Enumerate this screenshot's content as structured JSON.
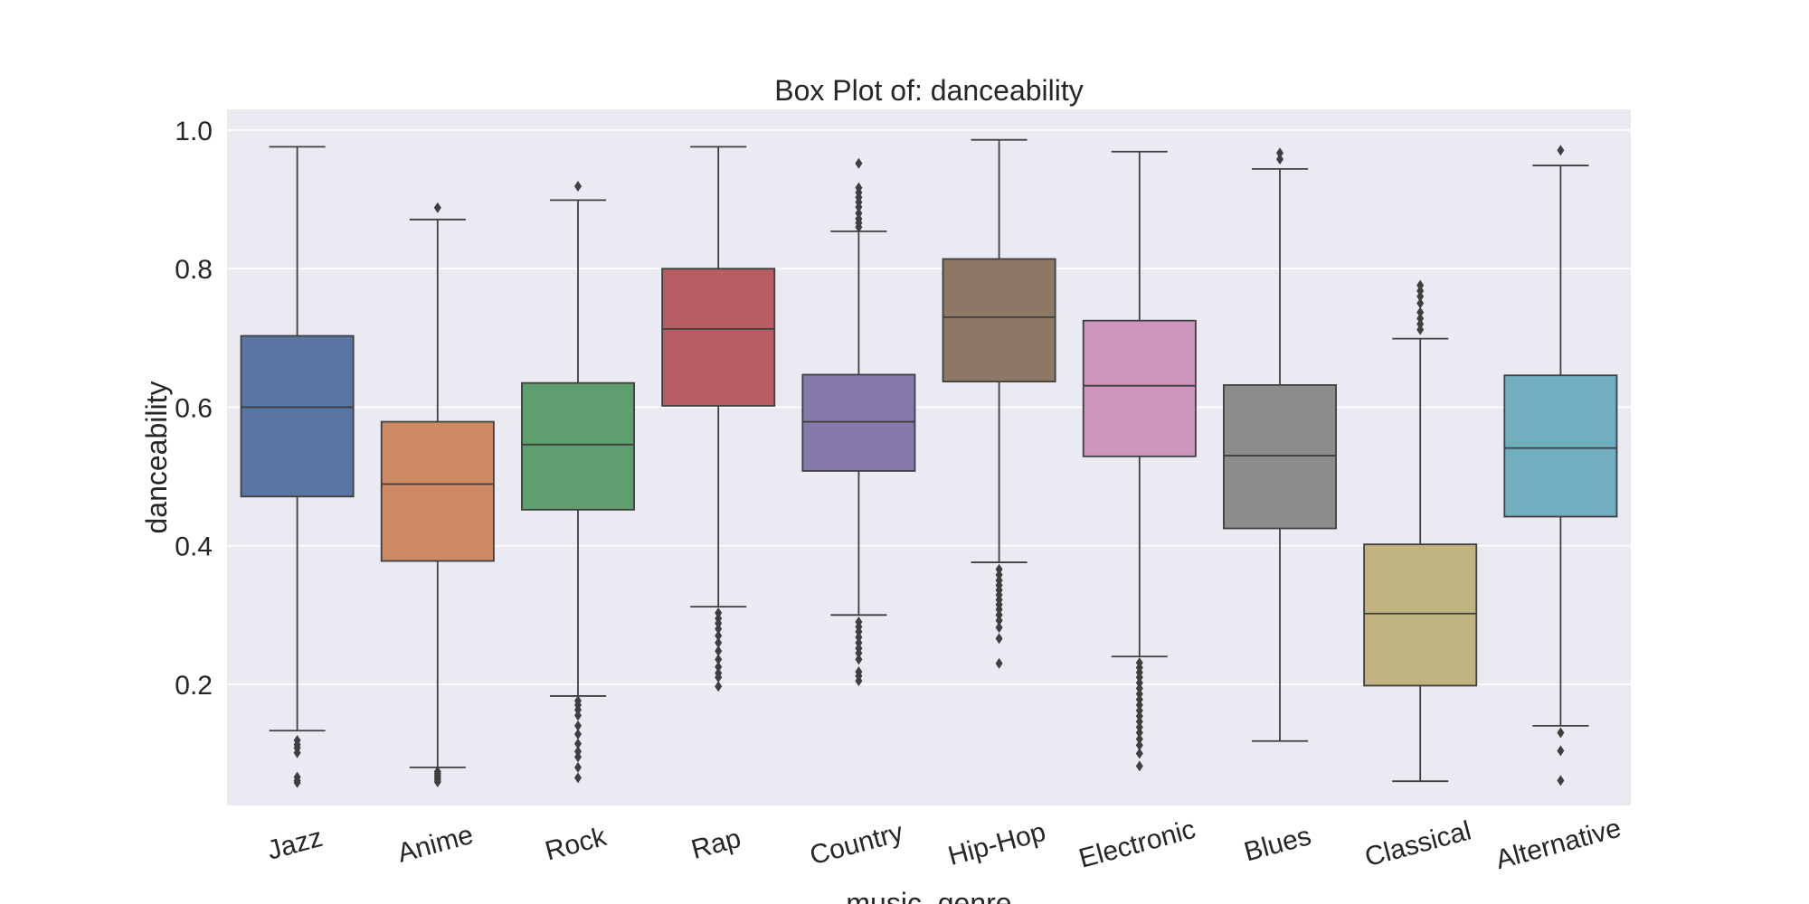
{
  "chart_data": {
    "type": "box",
    "title": "Box Plot of: danceability",
    "xlabel": "music_genre",
    "ylabel": "danceability",
    "ylim": [
      0.025,
      1.03
    ],
    "yticks": [
      0.2,
      0.4,
      0.6,
      0.8,
      1.0
    ],
    "ytick_labels": [
      "0.2",
      "0.4",
      "0.6",
      "0.8",
      "1.0"
    ],
    "grid": true,
    "background": "#EAEAF2",
    "categories": [
      "Jazz",
      "Anime",
      "Rock",
      "Rap",
      "Country",
      "Hip-Hop",
      "Electronic",
      "Blues",
      "Classical",
      "Alternative"
    ],
    "boxes": [
      {
        "name": "Jazz",
        "whisker_low": 0.133,
        "q1": 0.471,
        "median": 0.6,
        "q3": 0.703,
        "whisker_high": 0.976,
        "outliers": [
          0.119,
          0.113,
          0.108,
          0.101,
          0.066,
          0.061,
          0.058
        ],
        "color": "#5975A4"
      },
      {
        "name": "Anime",
        "whisker_low": 0.08,
        "q1": 0.378,
        "median": 0.489,
        "q3": 0.579,
        "whisker_high": 0.871,
        "outliers": [
          0.888,
          0.074,
          0.071,
          0.068,
          0.065,
          0.062,
          0.059
        ],
        "color": "#CC8963"
      },
      {
        "name": "Rock",
        "whisker_low": 0.183,
        "q1": 0.452,
        "median": 0.546,
        "q3": 0.635,
        "whisker_high": 0.899,
        "outliers": [
          0.919,
          0.176,
          0.17,
          0.163,
          0.155,
          0.14,
          0.128,
          0.114,
          0.103,
          0.095,
          0.08,
          0.065
        ],
        "color": "#5F9E6E"
      },
      {
        "name": "Rap",
        "whisker_low": 0.312,
        "q1": 0.602,
        "median": 0.713,
        "q3": 0.8,
        "whisker_high": 0.976,
        "outliers": [
          0.303,
          0.295,
          0.288,
          0.28,
          0.27,
          0.26,
          0.248,
          0.236,
          0.225,
          0.216,
          0.21,
          0.197
        ],
        "color": "#B55D60"
      },
      {
        "name": "Country",
        "whisker_low": 0.3,
        "q1": 0.508,
        "median": 0.579,
        "q3": 0.647,
        "whisker_high": 0.854,
        "outliers": [
          0.952,
          0.917,
          0.91,
          0.903,
          0.896,
          0.889,
          0.88,
          0.872,
          0.866,
          0.86,
          0.29,
          0.283,
          0.276,
          0.268,
          0.26,
          0.252,
          0.245,
          0.236,
          0.218,
          0.212,
          0.205
        ],
        "color": "#857AAB"
      },
      {
        "name": "Hip-Hop",
        "whisker_low": 0.376,
        "q1": 0.637,
        "median": 0.73,
        "q3": 0.814,
        "whisker_high": 0.986,
        "outliers": [
          0.366,
          0.358,
          0.35,
          0.343,
          0.336,
          0.329,
          0.322,
          0.315,
          0.308,
          0.3,
          0.292,
          0.282,
          0.266,
          0.23
        ],
        "color": "#8D7866"
      },
      {
        "name": "Electronic",
        "whisker_low": 0.24,
        "q1": 0.529,
        "median": 0.631,
        "q3": 0.725,
        "whisker_high": 0.969,
        "outliers": [
          0.231,
          0.224,
          0.217,
          0.21,
          0.202,
          0.194,
          0.186,
          0.178,
          0.17,
          0.162,
          0.154,
          0.146,
          0.138,
          0.13,
          0.121,
          0.112,
          0.1,
          0.082
        ],
        "color": "#D095BF"
      },
      {
        "name": "Blues",
        "whisker_low": 0.118,
        "q1": 0.425,
        "median": 0.53,
        "q3": 0.632,
        "whisker_high": 0.944,
        "outliers": [
          0.967,
          0.958
        ],
        "color": "#8C8C8C"
      },
      {
        "name": "Classical",
        "whisker_low": 0.06,
        "q1": 0.198,
        "median": 0.302,
        "q3": 0.402,
        "whisker_high": 0.699,
        "outliers": [
          0.776,
          0.768,
          0.76,
          0.75,
          0.737,
          0.728,
          0.72,
          0.712
        ],
        "color": "#C1B37F"
      },
      {
        "name": "Alternative",
        "whisker_low": 0.14,
        "q1": 0.442,
        "median": 0.541,
        "q3": 0.646,
        "whisker_high": 0.949,
        "outliers": [
          0.971,
          0.13,
          0.104,
          0.061
        ],
        "color": "#71AEC0"
      }
    ]
  }
}
